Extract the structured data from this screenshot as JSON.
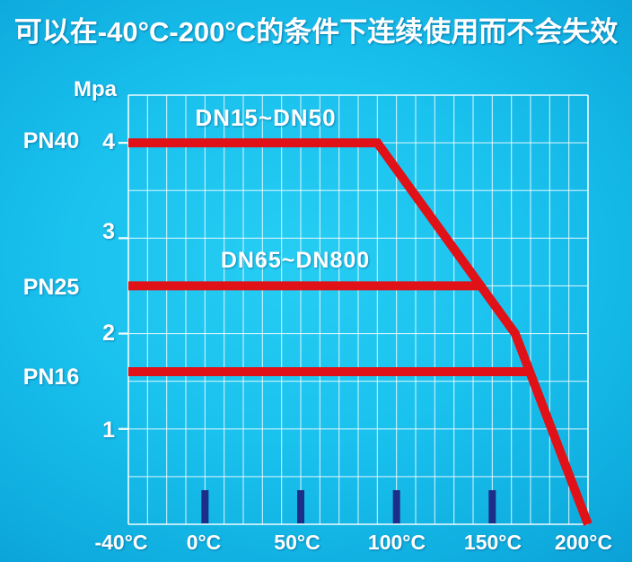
{
  "title": "可以在-40°C-200°C的条件下连续使用而不会失效",
  "colors": {
    "line_red": "#e01117",
    "marker_navy": "#1c2e87",
    "grid_line": "rgba(255,255,255,0.78)",
    "plot_edge": "rgba(255,255,255,0.95)",
    "text": "#ffffff",
    "background_center": "#26cdf3",
    "background_edge": "#0898d0"
  },
  "chart_data": {
    "type": "line",
    "title": "可以在-40°C-200°C的条件下连续使用而不会失效",
    "xlabel": "",
    "ylabel": "Mpa",
    "unit_label": "Mpa",
    "grid": true,
    "legend_position": "inline-above-lines",
    "x": {
      "min": -40,
      "max": 200,
      "grid_step": 10,
      "tick_values": [
        -40,
        0,
        50,
        100,
        150,
        200
      ],
      "tick_labels": [
        "-40°C",
        "0°C",
        "50°C",
        "100°C",
        "150°C",
        "200°C"
      ],
      "marker_tick_values": [
        0,
        50,
        100,
        150
      ]
    },
    "y": {
      "min": 0,
      "max": 4.5,
      "grid_step": 0.5,
      "tick_values": [
        4,
        3,
        2,
        1
      ],
      "tick_labels": [
        "4",
        "3",
        "2",
        "1"
      ]
    },
    "pn_labels": [
      "PN40",
      "PN25",
      "PN16"
    ],
    "series": [
      {
        "name": "DN15~DN50",
        "pn": "PN40",
        "rated_mpa": 4.0,
        "points": [
          [
            -40,
            4.0
          ],
          [
            90,
            4.0
          ],
          [
            162,
            2.0
          ],
          [
            200,
            0.0
          ]
        ]
      },
      {
        "name": "DN65~DN800",
        "pn": "PN25",
        "rated_mpa": 2.5,
        "points": [
          [
            -40,
            2.5
          ],
          [
            144,
            2.5
          ]
        ]
      },
      {
        "name": "",
        "pn": "PN16",
        "rated_mpa": 1.6,
        "points": [
          [
            -40,
            1.6
          ],
          [
            169.6,
            1.6
          ]
        ]
      }
    ]
  }
}
